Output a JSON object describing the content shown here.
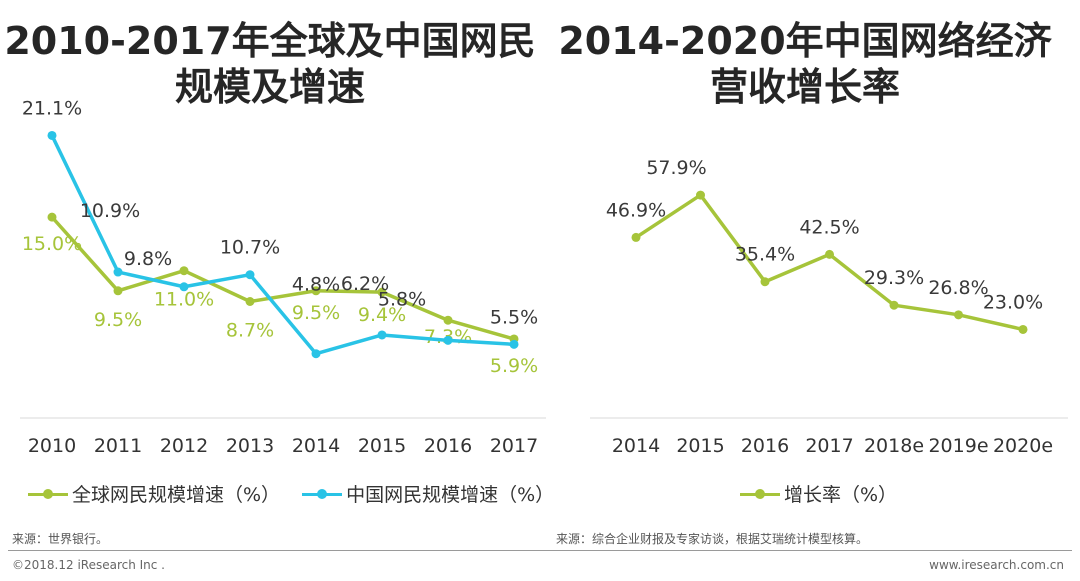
{
  "titles": {
    "left": "2010-2017年全球及中国网民规模及增速",
    "right": "2014-2020年中国网络经济营收增长率"
  },
  "colors": {
    "green": "#a6c43a",
    "blue": "#29c3e6",
    "label": "#3a3a3a",
    "axis": "#d9d9d9"
  },
  "chart_data": [
    {
      "type": "line",
      "title": "2010-2017年全球及中国网民规模及增速",
      "categories": [
        "2010",
        "2011",
        "2012",
        "2013",
        "2014",
        "2015",
        "2016",
        "2017"
      ],
      "series": [
        {
          "name": "全球网民规模增速（%）",
          "color": "#a6c43a",
          "values": [
            15.0,
            9.5,
            11.0,
            8.7,
            9.5,
            9.4,
            7.3,
            5.9
          ],
          "labels": [
            "15.0%",
            "9.5%",
            "11.0%",
            "8.7%",
            "9.5%",
            "9.4%",
            "7.3%",
            "5.9%"
          ]
        },
        {
          "name": "中国网民规模增速（%）",
          "color": "#29c3e6",
          "values": [
            21.1,
            10.9,
            9.8,
            10.7,
            4.8,
            6.2,
            5.8,
            5.5
          ],
          "labels": [
            "21.1%",
            "10.9%",
            "9.8%",
            "10.7%",
            "4.8%",
            "6.2%",
            "5.8%",
            "5.5%"
          ]
        }
      ],
      "ylim": [
        0,
        23
      ],
      "legend_position": "bottom-left",
      "source": "来源：世界银行。"
    },
    {
      "type": "line",
      "title": "2014-2020年中国网络经济营收增长率",
      "categories": [
        "2014",
        "2015",
        "2016",
        "2017",
        "2018e",
        "2019e",
        "2020e"
      ],
      "series": [
        {
          "name": "增长率（%）",
          "color": "#a6c43a",
          "values": [
            46.9,
            57.9,
            35.4,
            42.5,
            29.3,
            26.8,
            23.0
          ],
          "labels": [
            "46.9%",
            "57.9%",
            "35.4%",
            "42.5%",
            "29.3%",
            "26.8%",
            "23.0%"
          ]
        }
      ],
      "ylim": [
        0,
        80
      ],
      "legend_position": "bottom-center",
      "source": "来源：综合企业财报及专家访谈，根据艾瑞统计模型核算。"
    }
  ],
  "footer": {
    "copyright": "©2018.12 iResearch Inc .",
    "website": "www.iresearch.com.cn"
  }
}
